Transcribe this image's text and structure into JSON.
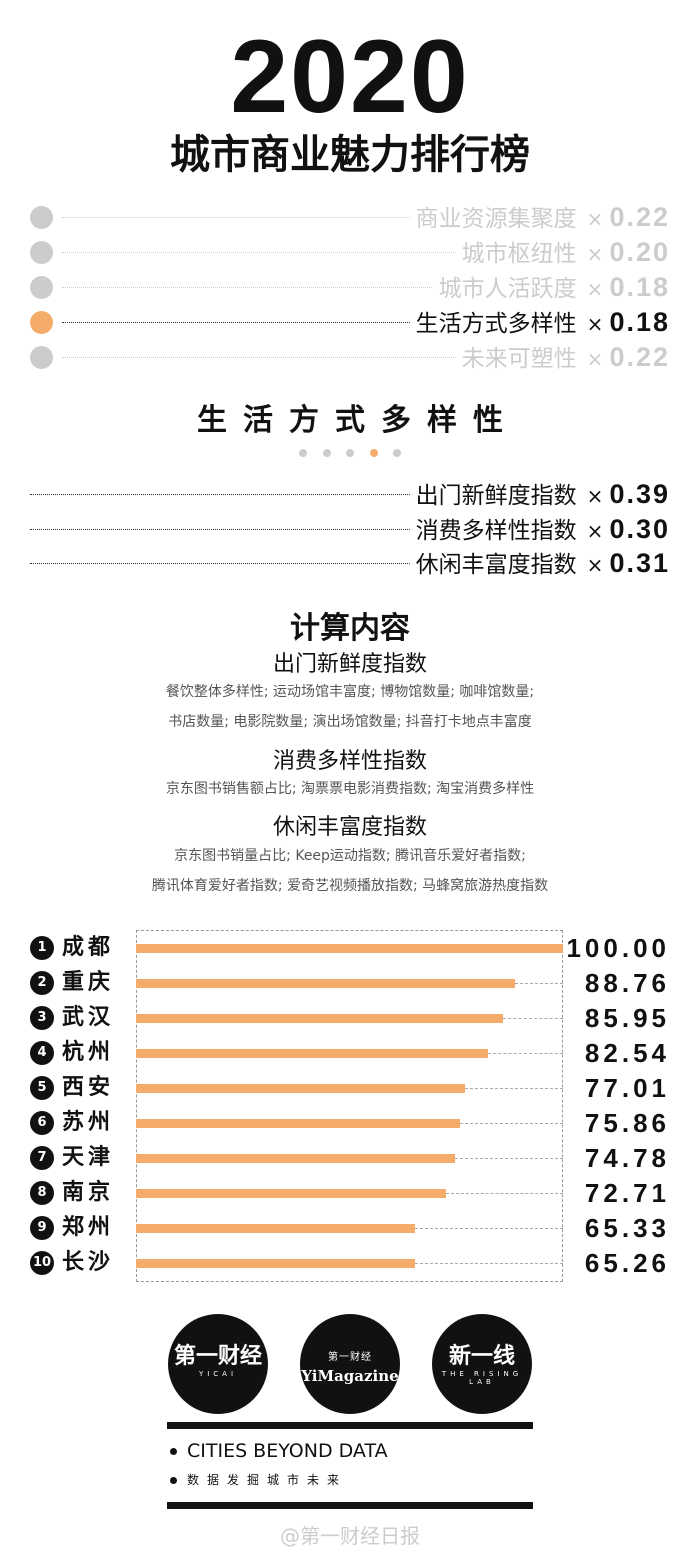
{
  "header": {
    "year": "2020",
    "title": "城市商业魅力排行榜"
  },
  "dimensions": [
    {
      "label": "商业资源集聚度",
      "weight": "0.22",
      "active": false
    },
    {
      "label": "城市枢纽性",
      "weight": "0.20",
      "active": false
    },
    {
      "label": "城市人活跃度",
      "weight": "0.18",
      "active": false
    },
    {
      "label": "生活方式多样性",
      "weight": "0.18",
      "active": true
    },
    {
      "label": "未来可塑性",
      "weight": "0.22",
      "active": false
    }
  ],
  "multiply_sign": "×",
  "section": {
    "title": "生活方式多样性",
    "page_index": 4,
    "page_count": 5
  },
  "sub_indices": [
    {
      "label": "出门新鲜度指数",
      "weight": "0.39"
    },
    {
      "label": "消费多样性指数",
      "weight": "0.30"
    },
    {
      "label": "休闲丰富度指数",
      "weight": "0.31"
    }
  ],
  "calc": {
    "title": "计算内容",
    "groups": [
      {
        "name": "出门新鲜度指数",
        "lines": [
          "餐饮整体多样性; 运动场馆丰富度; 博物馆数量; 咖啡馆数量;",
          "书店数量; 电影院数量; 演出场馆数量; 抖音打卡地点丰富度"
        ]
      },
      {
        "name": "消费多样性指数",
        "lines": [
          "京东图书销售额占比; 淘票票电影消费指数; 淘宝消费多样性"
        ]
      },
      {
        "name": "休闲丰富度指数",
        "lines": [
          "京东图书销量占比; Keep运动指数; 腾讯音乐爱好者指数;",
          "腾讯体育爱好者指数; 爱奇艺视频播放指数; 马蜂窝旅游热度指数"
        ]
      }
    ]
  },
  "colors": {
    "accent": "#f5ac6a",
    "inactive": "#cccccc",
    "text": "#111111"
  },
  "chart_data": {
    "type": "bar",
    "orientation": "horizontal",
    "categories": [
      "成都",
      "重庆",
      "武汉",
      "杭州",
      "西安",
      "苏州",
      "天津",
      "南京",
      "郑州",
      "长沙"
    ],
    "ranks": [
      "1",
      "2",
      "3",
      "4",
      "5",
      "6",
      "7",
      "8",
      "9",
      "10"
    ],
    "values": [
      100.0,
      88.76,
      85.95,
      82.54,
      77.01,
      75.86,
      74.78,
      72.71,
      65.33,
      65.26
    ],
    "value_labels": [
      "100.00",
      "88.76",
      "85.95",
      "82.54",
      "77.01",
      "75.86",
      "74.78",
      "72.71",
      "65.33",
      "65.26"
    ],
    "xlim": [
      0,
      100
    ],
    "bar_color": "#f5ac6a"
  },
  "footer": {
    "logos": [
      {
        "main": "第一财经",
        "sub": "YICAI"
      },
      {
        "main": "YiMagazine",
        "sub": "第一财经"
      },
      {
        "main": "新一线",
        "sub": "THE RISING LAB"
      }
    ],
    "tagline_en": "CITIES BEYOND DATA",
    "tagline_cn": "数据发掘城市未来",
    "watermark": "@第一财经日报"
  }
}
